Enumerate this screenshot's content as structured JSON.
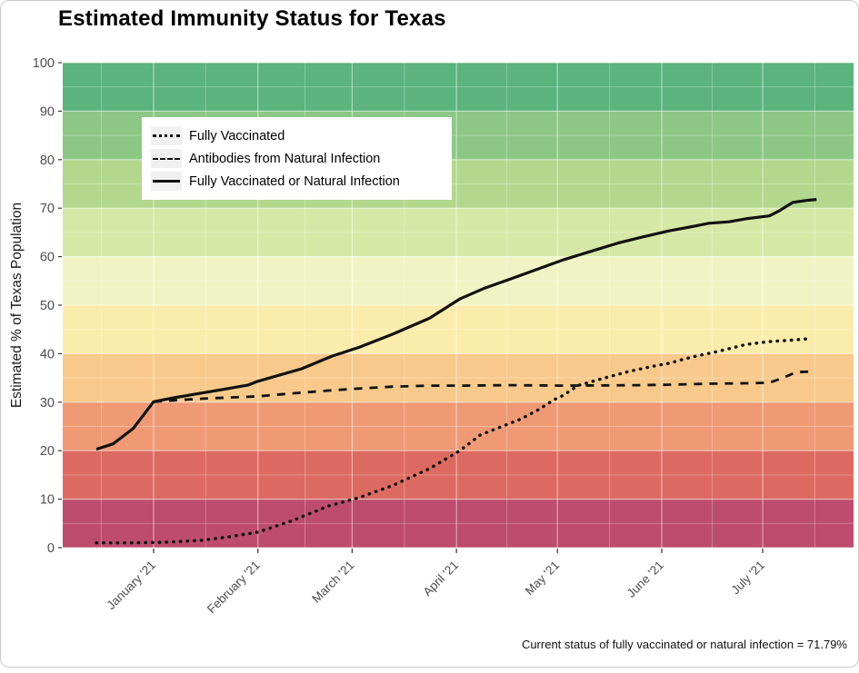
{
  "figure": {
    "title": "Estimated Immunity Status for Texas",
    "caption": "Current status of fully vaccinated or natural infection = 71.79%"
  },
  "chart_data": {
    "type": "line",
    "title": "Estimated Immunity Status for Texas",
    "xlabel": "",
    "ylabel": "Estimated % of Texas Population",
    "caption": "Current status of fully vaccinated or natural infection = 71.79%",
    "current_status_value": "71.79%",
    "ylim": [
      0,
      100
    ],
    "y_ticks": [
      0,
      10,
      20,
      30,
      40,
      50,
      60,
      70,
      80,
      90,
      100
    ],
    "y_minor_ticks": [
      5,
      15,
      25,
      35,
      45,
      55,
      65,
      75,
      85,
      95
    ],
    "x_units": "days since 2020-12-15",
    "x_domain_days": [
      -10,
      225
    ],
    "x_tick_labels": [
      "January '21",
      "February '21",
      "March '21",
      "April '21",
      "May '21",
      "June '21",
      "July '21"
    ],
    "x_tick_days": [
      17,
      48,
      76,
      107,
      137,
      168,
      198
    ],
    "x_minor_days": [
      1.5,
      32.5,
      62,
      91.5,
      122,
      152.5,
      183,
      213.5
    ],
    "grid": "white major and minor gridlines over banded background",
    "legend_position": "inset top-left",
    "line_color": "#111111",
    "background_bands": [
      {
        "lo": 90,
        "hi": 100,
        "color": "#5bb37e"
      },
      {
        "lo": 80,
        "hi": 90,
        "color": "#8dc785"
      },
      {
        "lo": 70,
        "hi": 80,
        "color": "#b3d78d"
      },
      {
        "lo": 60,
        "hi": 70,
        "color": "#d6e8a5"
      },
      {
        "lo": 50,
        "hi": 60,
        "color": "#f0f4c4"
      },
      {
        "lo": 40,
        "hi": 50,
        "color": "#fcecab"
      },
      {
        "lo": 30,
        "hi": 40,
        "color": "#f8c98b"
      },
      {
        "lo": 20,
        "hi": 30,
        "color": "#ef9a75"
      },
      {
        "lo": 10,
        "hi": 20,
        "color": "#dd6a60"
      },
      {
        "lo": 0,
        "hi": 10,
        "color": "#bd4c6e"
      }
    ],
    "legend": [
      {
        "label": "Fully Vaccinated",
        "line_style": "dotted"
      },
      {
        "label": "Antibodies from Natural Infection",
        "line_style": "dashed"
      },
      {
        "label": "Fully Vaccinated or Natural Infection",
        "line_style": "solid"
      }
    ],
    "series": [
      {
        "name": "Fully Vaccinated",
        "style": "dotted",
        "points": [
          [
            0,
            1.0
          ],
          [
            10,
            1.0
          ],
          [
            20,
            1.1
          ],
          [
            31,
            1.5
          ],
          [
            39,
            2.2
          ],
          [
            48,
            3.2
          ],
          [
            58,
            5.5
          ],
          [
            69,
            8.6
          ],
          [
            78,
            10.3
          ],
          [
            88,
            12.8
          ],
          [
            99,
            16.3
          ],
          [
            108,
            20.0
          ],
          [
            114,
            23.2
          ],
          [
            126,
            26.5
          ],
          [
            131,
            28.3
          ],
          [
            136,
            30.5
          ],
          [
            139,
            31.5
          ],
          [
            143,
            33.4
          ],
          [
            150,
            34.8
          ],
          [
            158,
            36.3
          ],
          [
            166,
            37.5
          ],
          [
            170,
            38.0
          ],
          [
            177,
            39.3
          ],
          [
            185,
            40.5
          ],
          [
            193,
            41.9
          ],
          [
            200,
            42.5
          ],
          [
            207,
            42.8
          ],
          [
            212,
            43.1
          ]
        ]
      },
      {
        "name": "Antibodies from Natural Infection",
        "style": "dashed",
        "points": [
          [
            17,
            30.1
          ],
          [
            26,
            30.5
          ],
          [
            34,
            30.8
          ],
          [
            45,
            31.1
          ],
          [
            48,
            31.2
          ],
          [
            58,
            31.8
          ],
          [
            69,
            32.4
          ],
          [
            78,
            32.8
          ],
          [
            88,
            33.2
          ],
          [
            99,
            33.4
          ],
          [
            109,
            33.4
          ],
          [
            123,
            33.5
          ],
          [
            139,
            33.4
          ],
          [
            161,
            33.5
          ],
          [
            170,
            33.6
          ],
          [
            182,
            33.8
          ],
          [
            193,
            33.9
          ],
          [
            200,
            34.0
          ],
          [
            204,
            35.0
          ],
          [
            208,
            36.2
          ],
          [
            212,
            36.3
          ]
        ]
      },
      {
        "name": "Fully Vaccinated or Natural Infection",
        "style": "solid",
        "points": [
          [
            0,
            20.3
          ],
          [
            5,
            21.4
          ],
          [
            11,
            24.6
          ],
          [
            17,
            30.1
          ],
          [
            23,
            30.9
          ],
          [
            34,
            32.2
          ],
          [
            45,
            33.5
          ],
          [
            48,
            34.3
          ],
          [
            61,
            36.9
          ],
          [
            70,
            39.5
          ],
          [
            78,
            41.3
          ],
          [
            88,
            44.0
          ],
          [
            99,
            47.3
          ],
          [
            108,
            51.3
          ],
          [
            115,
            53.4
          ],
          [
            123,
            55.4
          ],
          [
            131,
            57.4
          ],
          [
            139,
            59.4
          ],
          [
            147,
            61.1
          ],
          [
            155,
            62.8
          ],
          [
            162,
            64.0
          ],
          [
            170,
            65.3
          ],
          [
            177,
            66.2
          ],
          [
            182,
            66.9
          ],
          [
            188,
            67.2
          ],
          [
            193,
            67.8
          ],
          [
            200,
            68.4
          ],
          [
            203,
            69.5
          ],
          [
            207,
            71.2
          ],
          [
            211,
            71.6
          ],
          [
            214,
            71.8
          ]
        ]
      }
    ]
  }
}
